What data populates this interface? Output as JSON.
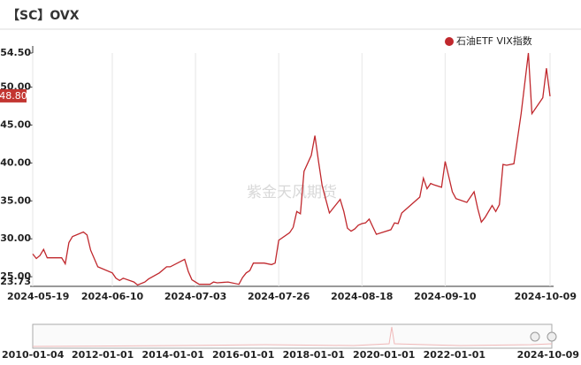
{
  "chart_data": {
    "type": "line",
    "title": "【SC】OVX",
    "watermark": "紫金天风期货",
    "series": [
      {
        "name": "石油ETF VIX指数",
        "color": "#c0282d",
        "x": [
          "2024-05-19",
          "2024-05-20",
          "2024-05-21",
          "2024-05-22",
          "2024-05-23",
          "2024-05-27",
          "2024-05-28",
          "2024-05-29",
          "2024-05-30",
          "2024-06-02",
          "2024-06-03",
          "2024-06-04",
          "2024-06-06",
          "2024-06-10",
          "2024-06-11",
          "2024-06-12",
          "2024-06-13",
          "2024-06-16",
          "2024-06-17",
          "2024-06-19",
          "2024-06-20",
          "2024-06-23",
          "2024-06-25",
          "2024-06-26",
          "2024-06-30",
          "2024-07-01",
          "2024-07-02",
          "2024-07-04",
          "2024-07-07",
          "2024-07-08",
          "2024-07-09",
          "2024-07-12",
          "2024-07-15",
          "2024-07-16",
          "2024-07-17",
          "2024-07-18",
          "2024-07-19",
          "2024-07-22",
          "2024-07-24",
          "2024-07-25",
          "2024-07-26",
          "2024-07-29",
          "2024-07-30",
          "2024-07-31",
          "2024-08-01",
          "2024-08-02",
          "2024-08-04",
          "2024-08-05",
          "2024-08-06",
          "2024-08-07",
          "2024-08-09",
          "2024-08-10",
          "2024-08-12",
          "2024-08-13",
          "2024-08-14",
          "2024-08-15",
          "2024-08-16",
          "2024-08-17",
          "2024-08-18",
          "2024-08-19",
          "2024-08-20",
          "2024-08-21",
          "2024-08-22",
          "2024-08-26",
          "2024-08-27",
          "2024-08-28",
          "2024-08-29",
          "2024-09-03",
          "2024-09-04",
          "2024-09-05",
          "2024-09-06",
          "2024-09-07",
          "2024-09-09",
          "2024-09-10",
          "2024-09-11",
          "2024-09-12",
          "2024-09-13",
          "2024-09-16",
          "2024-09-18",
          "2024-09-19",
          "2024-09-20",
          "2024-09-21",
          "2024-09-23",
          "2024-09-24",
          "2024-09-25",
          "2024-09-26",
          "2024-09-27",
          "2024-09-29",
          "2024-10-01",
          "2024-10-02",
          "2024-10-03",
          "2024-10-04",
          "2024-10-05",
          "2024-10-07",
          "2024-10-08",
          "2024-10-09"
        ],
        "values": [
          28.0,
          27.4,
          27.8,
          28.6,
          27.5,
          27.5,
          26.7,
          29.5,
          30.3,
          30.9,
          30.5,
          28.5,
          26.3,
          25.5,
          24.8,
          24.5,
          24.8,
          24.3,
          23.9,
          24.3,
          24.7,
          25.5,
          26.3,
          26.3,
          27.3,
          25.7,
          24.6,
          24.0,
          24.0,
          24.3,
          24.2,
          24.3,
          24.0,
          24.9,
          25.5,
          25.8,
          26.8,
          26.8,
          26.6,
          26.8,
          29.8,
          30.8,
          31.5,
          33.6,
          33.3,
          38.9,
          41.0,
          43.6,
          40.2,
          37.0,
          33.4,
          34.0,
          35.2,
          33.6,
          31.4,
          31.0,
          31.3,
          31.8,
          32.0,
          32.1,
          32.6,
          31.6,
          30.6,
          31.2,
          32.1,
          32.0,
          33.4,
          35.5,
          38.0,
          36.6,
          37.3,
          37.1,
          36.8,
          40.2,
          38.2,
          36.2,
          35.3,
          34.8,
          36.2,
          34.0,
          32.2,
          32.8,
          34.4,
          33.6,
          34.5,
          39.8,
          39.7,
          39.9,
          46.5,
          50.5,
          54.5,
          46.5,
          47.2,
          48.6,
          52.5,
          48.8
        ]
      }
    ],
    "last_value": {
      "value": 48.8,
      "label": "48.80"
    },
    "xlim": [
      "2024-05-19",
      "2024-10-09"
    ],
    "xticks": [
      "2024-05-19",
      "2024-06-10",
      "2024-07-03",
      "2024-07-26",
      "2024-08-18",
      "2024-09-10",
      "2024-10-09"
    ],
    "ylim": [
      23.73,
      54.5
    ],
    "yticks": [
      {
        "value": 54.5,
        "label": "54.50"
      },
      {
        "value": 50,
        "label": "50.00"
      },
      {
        "value": 45,
        "label": "45.00"
      },
      {
        "value": 40,
        "label": "40.00"
      },
      {
        "value": 35,
        "label": "35.00"
      },
      {
        "value": 30,
        "label": "30.00"
      },
      {
        "value": 25,
        "label": "25.00"
      },
      23.73
    ],
    "grid": true,
    "legend": "top-right",
    "navigator": {
      "xlim": [
        "2010-01-04",
        "2024-10-09"
      ],
      "xticks": [
        "2010-01-04",
        "2012-01-01",
        "2014-01-01",
        "2016-01-01",
        "2018-01-01",
        "2020-01-01",
        "2022-01-01",
        "2024-10-09"
      ]
    }
  }
}
